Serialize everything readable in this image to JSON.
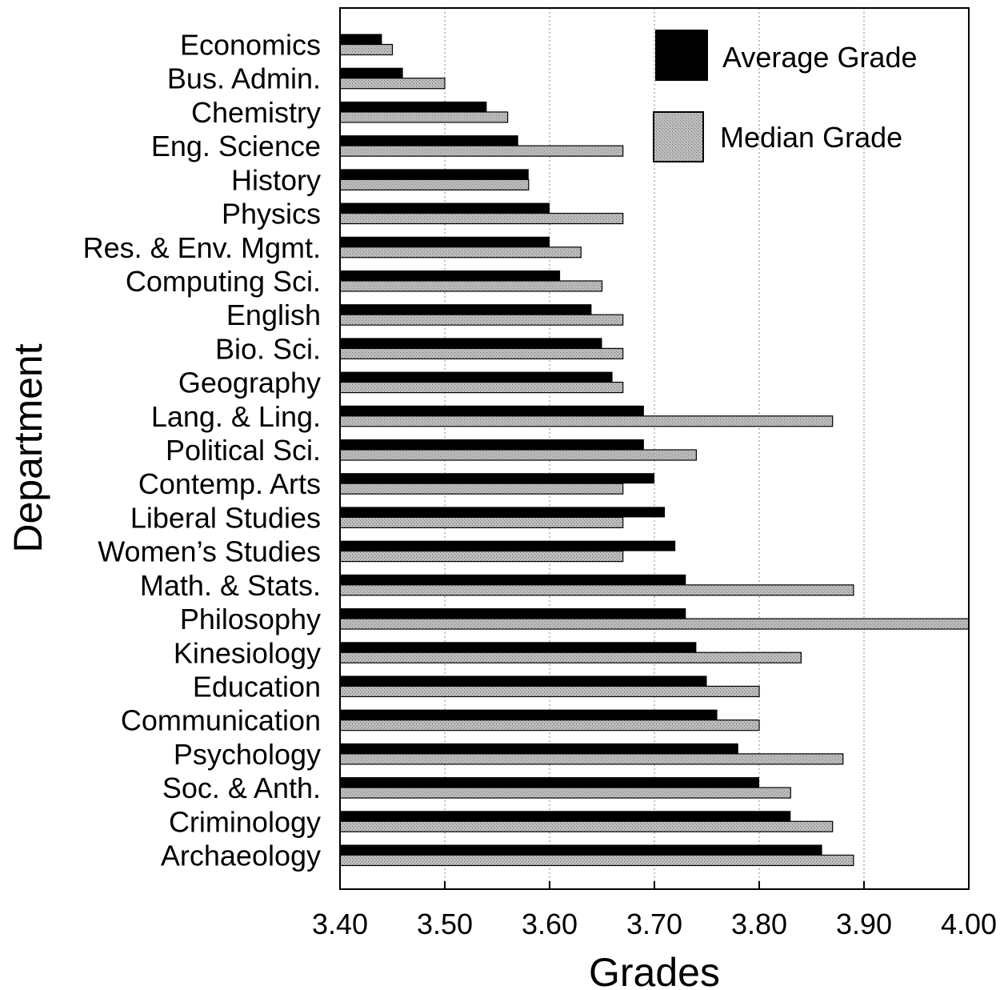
{
  "chart_data": {
    "type": "bar",
    "orientation": "horizontal",
    "xlabel": "Grades",
    "ylabel": "Department",
    "xlim": [
      3.4,
      4.0
    ],
    "xticks": [
      "3.40",
      "3.50",
      "3.60",
      "3.70",
      "3.80",
      "3.90",
      "4.00"
    ],
    "grid": "vertical dotted",
    "legend_position": "top-right",
    "categories": [
      "Economics",
      "Bus. Admin.",
      "Chemistry",
      "Eng. Science",
      "History",
      "Physics",
      "Res. & Env. Mgmt.",
      "Computing Sci.",
      "English",
      "Bio. Sci.",
      "Geography",
      "Lang. & Ling.",
      "Political Sci.",
      "Contemp. Arts",
      "Liberal Studies",
      "Women’s Studies",
      "Math. & Stats.",
      "Philosophy",
      "Kinesiology",
      "Education",
      "Communication",
      "Psychology",
      "Soc. & Anth.",
      "Criminology",
      "Archaeology"
    ],
    "series": [
      {
        "name": "Average Grade",
        "color": "#000000",
        "values": [
          3.44,
          3.46,
          3.54,
          3.57,
          3.58,
          3.6,
          3.6,
          3.61,
          3.64,
          3.65,
          3.66,
          3.69,
          3.69,
          3.7,
          3.71,
          3.72,
          3.73,
          3.73,
          3.74,
          3.75,
          3.76,
          3.78,
          3.8,
          3.83,
          3.86
        ]
      },
      {
        "name": "Median Grade",
        "color": "#b4b4b4",
        "values": [
          3.45,
          3.5,
          3.56,
          3.67,
          3.58,
          3.67,
          3.63,
          3.65,
          3.67,
          3.67,
          3.67,
          3.87,
          3.74,
          3.67,
          3.67,
          3.67,
          3.89,
          4.0,
          3.84,
          3.8,
          3.8,
          3.88,
          3.83,
          3.87,
          3.89
        ]
      }
    ]
  }
}
